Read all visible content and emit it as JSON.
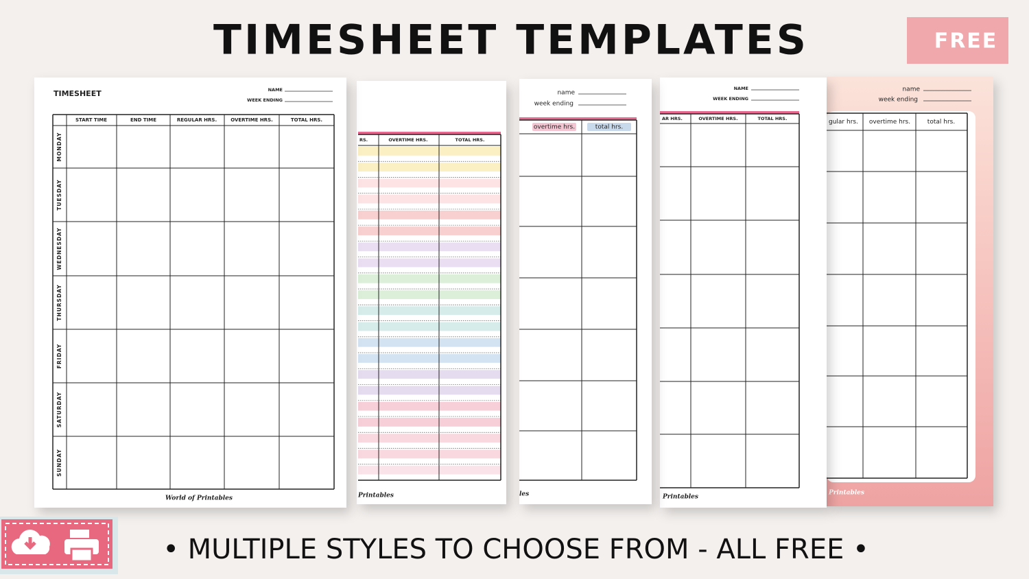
{
  "header": {
    "title": "TIMESHEET TEMPLATES",
    "badge": "FREE"
  },
  "sheets": [
    {
      "title": "TIMESHEET",
      "name_label": "NAME",
      "week_label": "WEEK ENDING",
      "columns": [
        "START TIME",
        "END TIME",
        "REGULAR HRS.",
        "OVERTIME HRS.",
        "TOTAL HRS."
      ],
      "days": [
        "MONDAY",
        "TUESDAY",
        "WEDNESDAY",
        "THURSDAY",
        "FRIDAY",
        "SATURDAY",
        "SUNDAY"
      ],
      "brand": "World of Printables"
    },
    {
      "columns": [
        "RS.",
        "OVERTIME HRS.",
        "TOTAL HRS."
      ],
      "brand": "Printables"
    },
    {
      "name_label": "name",
      "week_label": "week ending",
      "columns": [
        "overtime hrs.",
        "total hrs."
      ],
      "brand": "les"
    },
    {
      "name_label": "NAME",
      "week_label": "WEEK ENDING",
      "columns": [
        "AR HRS.",
        "OVERTIME HRS.",
        "TOTAL HRS."
      ],
      "brand": "Printables"
    },
    {
      "name_label": "name",
      "week_label": "week ending",
      "columns": [
        "gular hrs.",
        "overtime hrs.",
        "total hrs."
      ],
      "brand": "Printables"
    }
  ],
  "footer": {
    "tagline": "• MULTIPLE STYLES TO CHOOSE FROM - ALL FREE •"
  }
}
